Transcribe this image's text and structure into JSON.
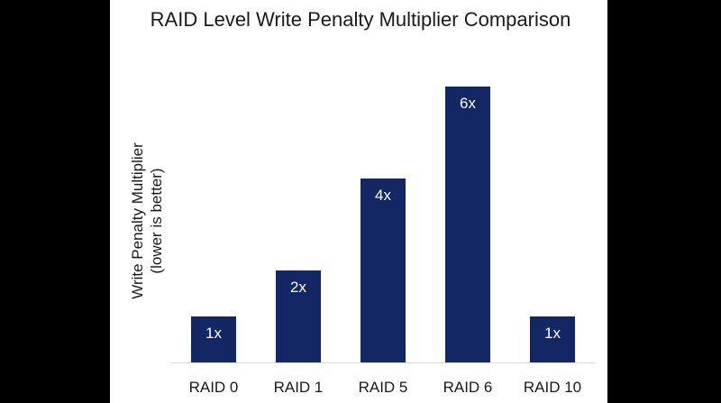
{
  "chart_data": {
    "type": "bar",
    "title": "RAID Level Write Penalty Multiplier Comparison",
    "ylabel_lines": [
      "Write Penalty Multiplier",
      "(lower is better)"
    ],
    "xlabel": "",
    "categories": [
      "RAID 0",
      "RAID 1",
      "RAID 5",
      "RAID 6",
      "RAID 10"
    ],
    "values": [
      1,
      2,
      4,
      6,
      1
    ],
    "data_labels": [
      "1x",
      "2x",
      "4x",
      "6x",
      "1x"
    ],
    "ylim": [
      0,
      6
    ],
    "bar_color": "#132765",
    "grid": false,
    "legend": "none"
  },
  "colors": {
    "background": "#000000",
    "panel": "#ffffff",
    "axis": "#d9d9d9"
  }
}
